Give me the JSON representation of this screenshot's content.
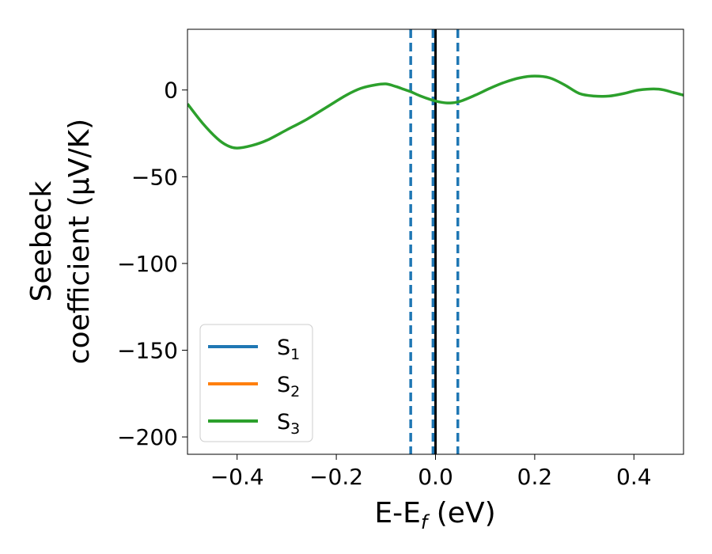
{
  "chart_data": {
    "type": "line",
    "title": "",
    "xlabel": {
      "main": "E-E",
      "sub": "f",
      "unit": " (eV)"
    },
    "ylabel": {
      "line1": "Seebeck",
      "line2": "coefficient  (μV/K)"
    },
    "xlim": [
      -0.5,
      0.5
    ],
    "ylim": [
      -210,
      35
    ],
    "xticks": [
      -0.4,
      -0.2,
      0.0,
      0.2,
      0.4
    ],
    "xtick_labels": [
      "−0.4",
      "−0.2",
      "0.0",
      "0.2",
      "0.4"
    ],
    "yticks": [
      0,
      -50,
      -100,
      -150,
      -200
    ],
    "ytick_labels": [
      "0",
      "−50",
      "−100",
      "−150",
      "−200"
    ],
    "grid": false,
    "legend_position": "lower-left",
    "series": [
      {
        "name": "S",
        "sub": "1",
        "color": "#1f77b4",
        "x": [],
        "y": []
      },
      {
        "name": "S",
        "sub": "2",
        "color": "#ff7f0e",
        "x": [],
        "y": []
      },
      {
        "name": "S",
        "sub": "3",
        "color": "#2ca02c",
        "x": [
          -0.5,
          -0.47,
          -0.44,
          -0.42,
          -0.4,
          -0.37,
          -0.34,
          -0.3,
          -0.26,
          -0.22,
          -0.18,
          -0.15,
          -0.12,
          -0.1,
          -0.08,
          -0.065,
          -0.05,
          -0.03,
          -0.01,
          0.01,
          0.03,
          0.05,
          0.08,
          0.11,
          0.14,
          0.17,
          0.2,
          0.23,
          0.26,
          0.29,
          0.32,
          0.35,
          0.38,
          0.41,
          0.45,
          0.48,
          0.5
        ],
        "y": [
          -8,
          -19,
          -28,
          -32,
          -33.5,
          -32,
          -29,
          -23,
          -17,
          -10,
          -3,
          1,
          3,
          3.5,
          2,
          0.5,
          -1,
          -3.5,
          -5.5,
          -7,
          -7.5,
          -6.5,
          -3,
          1,
          4.5,
          7,
          8,
          7,
          3,
          -2,
          -3.5,
          -3.5,
          -2,
          0,
          0.5,
          -1.5,
          -3
        ]
      }
    ],
    "vlines": [
      {
        "x": 0.0,
        "color": "#000000",
        "style": "solid"
      },
      {
        "x": -0.05,
        "color": "#1f77b4",
        "style": "dashed"
      },
      {
        "x": -0.005,
        "color": "#1f77b4",
        "style": "dashed"
      },
      {
        "x": 0.045,
        "color": "#1f77b4",
        "style": "dashed"
      }
    ]
  }
}
